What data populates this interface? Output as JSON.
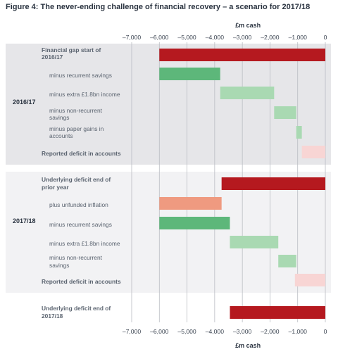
{
  "figure_title": "Figure 4: The never-ending challenge of financial recovery – a scenario for 2017/18",
  "colors": {
    "panel_bg": "#e6e6e9",
    "panel_bg_light": "#f2f2f4",
    "deficit": "#b5191f",
    "savings": "#5db77a",
    "light_green": "#a9d9b2",
    "salmon": "#ef9a80",
    "pale_pink": "#f8d5d4"
  },
  "chart_data": {
    "type": "bar",
    "orientation": "horizontal",
    "style": "waterfall",
    "unit_label": "£m cash",
    "x_ticks": [
      "–7,000",
      "–6,000",
      "–5,000",
      "–4,000",
      "–3,000",
      "–2,000",
      "–1,000",
      "0"
    ],
    "xlim": [
      -7000,
      0
    ],
    "grid": true,
    "groups": [
      {
        "label": "2016/17",
        "rows": [
          {
            "label": "Financial gap start of 2016/17",
            "start": -6000,
            "end": 0,
            "color": "deficit",
            "bold": true
          },
          {
            "label": "minus recurrent savings",
            "start": -6000,
            "end": -3800,
            "color": "savings",
            "bold": false
          },
          {
            "label": "minus extra £1.8bn income",
            "start": -3800,
            "end": -1850,
            "color": "light_green",
            "bold": false
          },
          {
            "label": "minus non-recurrent savings",
            "start": -1850,
            "end": -1050,
            "color": "light_green",
            "bold": false
          },
          {
            "label": "minus paper gains in accounts",
            "start": -1050,
            "end": -850,
            "color": "light_green",
            "bold": false
          },
          {
            "label": "Reported deficit in accounts",
            "start": -850,
            "end": 0,
            "color": "pale_pink",
            "bold": true
          }
        ]
      },
      {
        "label": "2017/18",
        "rows": [
          {
            "label": "Underlying deficit end of prior year",
            "start": -3750,
            "end": 0,
            "color": "deficit",
            "bold": true
          },
          {
            "label": "plus unfunded inflation",
            "start": -6000,
            "end": -3750,
            "color": "salmon",
            "bold": false
          },
          {
            "label": "minus recurrent savings",
            "start": -6000,
            "end": -3450,
            "color": "savings",
            "bold": false
          },
          {
            "label": "minus extra £1.8bn income",
            "start": -3450,
            "end": -1700,
            "color": "light_green",
            "bold": false
          },
          {
            "label": "minus non-recurrent savings",
            "start": -1700,
            "end": -1050,
            "color": "light_green",
            "bold": false
          },
          {
            "label": "Reported deficit in accounts",
            "start": -1100,
            "end": 0,
            "color": "pale_pink",
            "bold": true
          }
        ]
      }
    ],
    "final_row": {
      "label": "Underlying deficit end of 2017/18",
      "start": -3450,
      "end": 0,
      "color": "deficit",
      "bold": true
    }
  }
}
